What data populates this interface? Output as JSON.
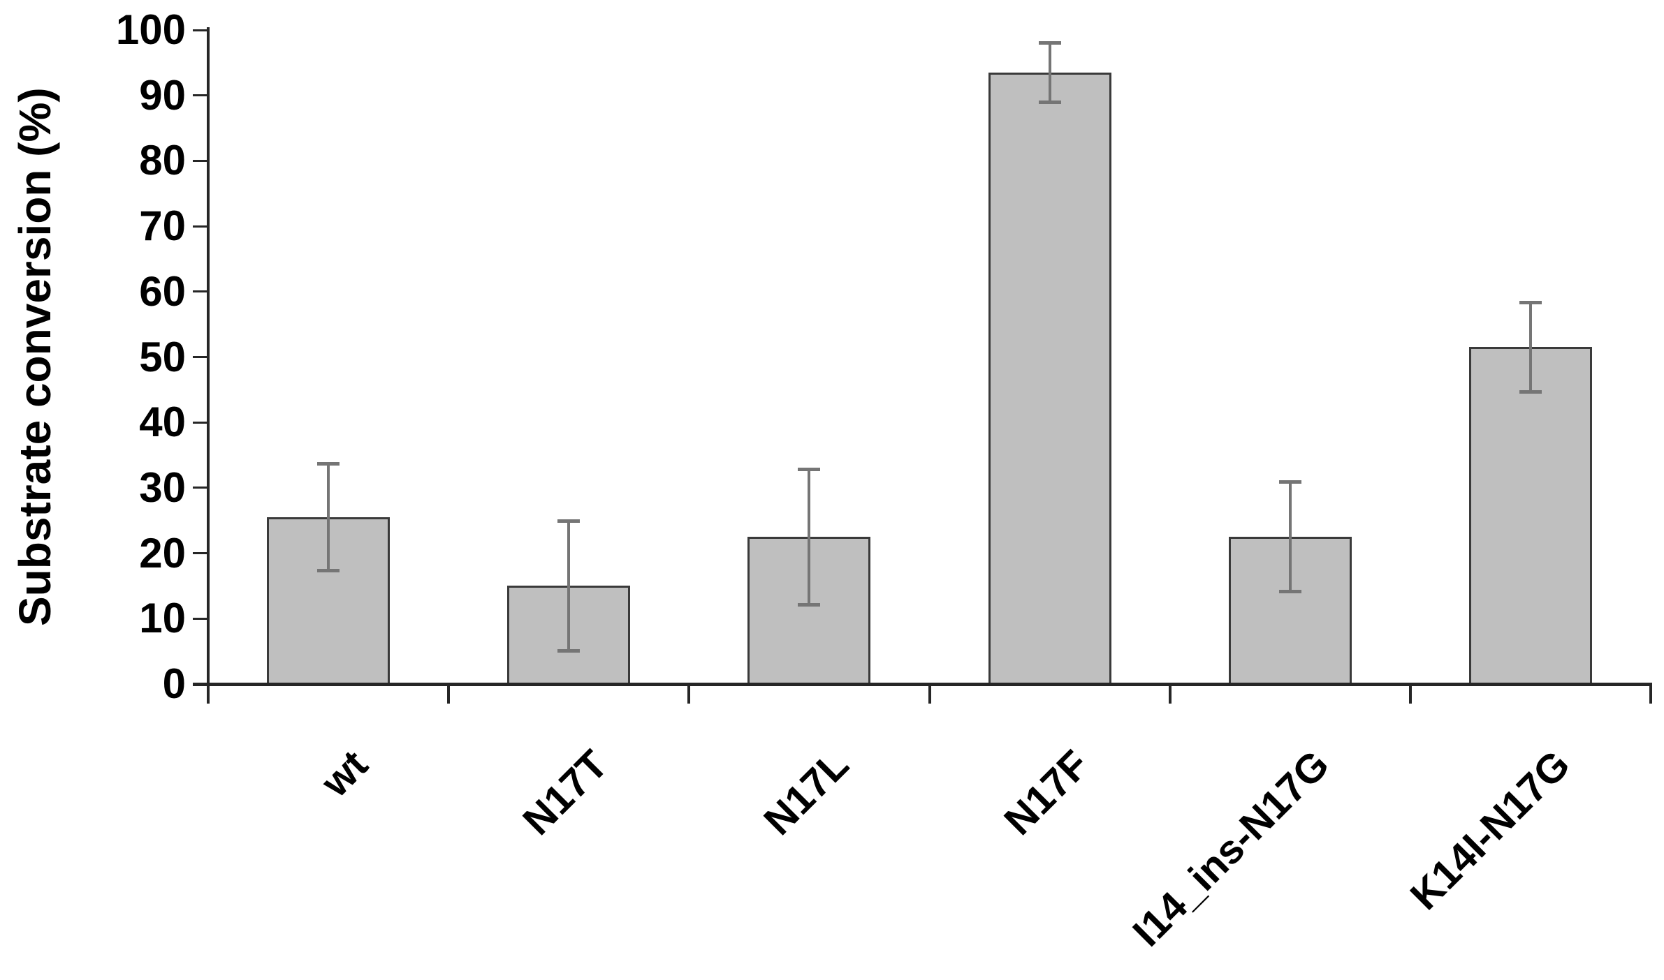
{
  "figure": {
    "background": "#ffffff"
  },
  "chart_data": {
    "type": "bar",
    "title": "",
    "ylabel": "Substrate conversion (%)",
    "xlabel": "",
    "ylim": [
      0,
      100
    ],
    "ytick_step": 10,
    "ytick_labels": [
      "0",
      "10",
      "20",
      "30",
      "40",
      "50",
      "60",
      "70",
      "80",
      "90",
      "100"
    ],
    "grid": false,
    "legend_position": "none",
    "categories": [
      "wt",
      "N17T",
      "N17L",
      "N17F",
      "I14_ins-N17G",
      "K14I-N17G"
    ],
    "values": [
      25.5,
      15,
      22.5,
      93.5,
      22.5,
      51.5
    ],
    "error_bars": {
      "type": "symmetric",
      "values": [
        8.2,
        10,
        10.4,
        4.6,
        8.4,
        6.9
      ]
    },
    "colors": {
      "bar_fill": "#bfbfbf",
      "bar_border": "#3a3a3a",
      "error_bar": "#757575",
      "axis": "#262626",
      "text": "#000000"
    }
  }
}
